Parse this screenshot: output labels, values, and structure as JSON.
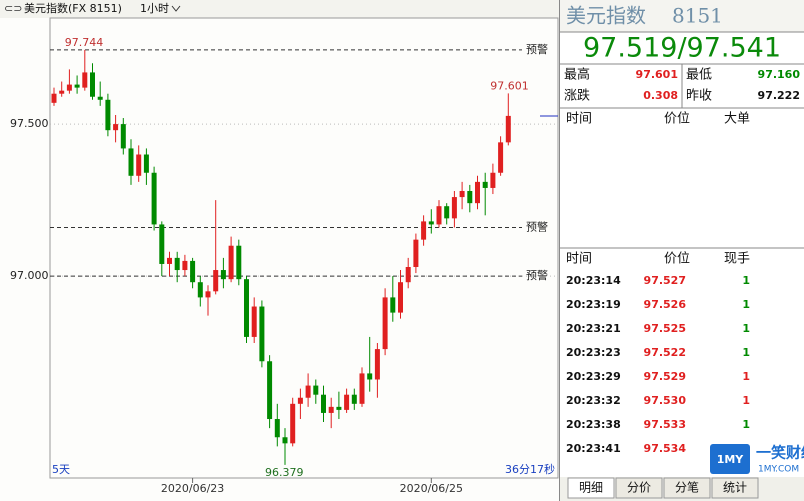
{
  "toolbar": {
    "symbol": "美元指数(FX 8151)",
    "period": "1小时"
  },
  "chart_data": {
    "type": "candlestick",
    "categories": [
      null,
      null,
      null,
      null,
      null,
      null,
      null,
      null,
      null,
      null,
      null,
      null,
      null,
      null,
      null,
      null,
      null,
      null,
      "2020/06/23",
      null,
      null,
      null,
      null,
      null,
      null,
      null,
      null,
      null,
      null,
      null,
      null,
      null,
      null,
      null,
      null,
      null,
      null,
      null,
      null,
      null,
      null,
      null,
      null,
      null,
      null,
      null,
      null,
      null,
      null,
      "2020/06/25",
      null,
      null,
      null,
      null,
      null,
      null,
      null,
      null,
      null,
      null
    ],
    "open": [
      97.57,
      97.6,
      97.61,
      97.63,
      97.62,
      97.67,
      97.59,
      97.58,
      97.48,
      97.5,
      97.42,
      97.33,
      97.4,
      97.34,
      97.17,
      97.04,
      97.06,
      97.02,
      97.05,
      96.98,
      96.93,
      96.95,
      97.02,
      96.99,
      97.1,
      96.99,
      96.8,
      96.9,
      96.72,
      96.53,
      96.47,
      96.45,
      96.58,
      96.6,
      96.64,
      96.61,
      96.55,
      96.57,
      96.56,
      96.61,
      96.58,
      96.68,
      96.66,
      96.76,
      96.93,
      96.88,
      96.98,
      97.03,
      97.12,
      97.18,
      97.17,
      97.23,
      97.19,
      97.26,
      97.28,
      97.24,
      97.31,
      97.29,
      97.34,
      97.44
    ],
    "high": [
      97.62,
      97.64,
      97.68,
      97.66,
      97.744,
      97.7,
      97.64,
      97.6,
      97.53,
      97.52,
      97.45,
      97.43,
      97.42,
      97.36,
      97.18,
      97.08,
      97.08,
      97.07,
      97.06,
      97.0,
      96.97,
      97.25,
      97.06,
      97.13,
      97.12,
      97.0,
      96.93,
      96.92,
      96.74,
      96.58,
      96.5,
      96.6,
      96.63,
      96.68,
      96.66,
      96.64,
      96.6,
      96.62,
      96.63,
      96.63,
      96.7,
      96.8,
      96.78,
      96.96,
      97.0,
      97.02,
      97.06,
      97.14,
      97.2,
      97.22,
      97.25,
      97.24,
      97.28,
      97.31,
      97.3,
      97.33,
      97.34,
      97.37,
      97.46,
      97.601
    ],
    "low": [
      97.56,
      97.59,
      97.6,
      97.6,
      97.61,
      97.58,
      97.56,
      97.46,
      97.44,
      97.4,
      97.3,
      97.31,
      97.3,
      97.15,
      97.0,
      97.0,
      96.98,
      97.0,
      96.96,
      96.9,
      96.87,
      96.94,
      96.96,
      96.98,
      96.97,
      96.78,
      96.78,
      96.7,
      96.5,
      96.44,
      96.379,
      96.44,
      96.53,
      96.57,
      96.58,
      96.52,
      96.5,
      96.53,
      96.55,
      96.56,
      96.57,
      96.62,
      96.6,
      96.74,
      96.85,
      96.86,
      96.96,
      97.01,
      97.1,
      97.14,
      97.16,
      97.17,
      97.16,
      97.22,
      97.21,
      97.22,
      97.2,
      97.27,
      97.33,
      97.43
    ],
    "close": [
      97.6,
      97.61,
      97.63,
      97.62,
      97.67,
      97.59,
      97.58,
      97.48,
      97.5,
      97.42,
      97.33,
      97.4,
      97.34,
      97.17,
      97.04,
      97.06,
      97.02,
      97.05,
      96.98,
      96.93,
      96.95,
      97.02,
      96.99,
      97.1,
      96.99,
      96.8,
      96.9,
      96.72,
      96.53,
      96.47,
      96.45,
      96.58,
      96.6,
      96.64,
      96.61,
      96.55,
      96.57,
      96.56,
      96.61,
      96.58,
      96.68,
      96.66,
      96.76,
      96.93,
      96.88,
      96.98,
      97.03,
      97.12,
      97.18,
      97.17,
      97.23,
      97.19,
      97.26,
      97.28,
      97.24,
      97.31,
      97.29,
      97.34,
      97.44,
      97.527
    ],
    "up_color": "#e02020",
    "down_color": "#008a00",
    "ylim": [
      96.336,
      97.849
    ],
    "yticks": [
      {
        "value": 97.5,
        "label": "97.500"
      },
      {
        "value": 97,
        "label": "97.000"
      }
    ],
    "grid": true,
    "alerts": [
      {
        "value": 97.744,
        "label": "预警"
      },
      {
        "value": 97.16,
        "label": "预警"
      },
      {
        "value": 97.0,
        "label": "预警"
      }
    ],
    "range_label": "5天",
    "countdown": "36分17秒"
  },
  "quote_panel": {
    "name": "美元指数",
    "code": "8151",
    "price": "97.519/97.541",
    "stats": [
      [
        "最高",
        "97.601"
      ],
      [
        "最低",
        "97.160"
      ],
      [
        "涨跌",
        "0.308"
      ],
      [
        "昨收",
        "97.222"
      ]
    ],
    "big_orders_header": [
      "时间",
      "价位",
      "大单"
    ],
    "ticks_header": [
      "时间",
      "价位",
      "现手"
    ],
    "ticks": [
      {
        "time": "20:23:14",
        "price": "97.527",
        "volume": "1",
        "volume_color": "#008a00"
      },
      {
        "time": "20:23:19",
        "price": "97.526",
        "volume": "1",
        "volume_color": "#008a00"
      },
      {
        "time": "20:23:21",
        "price": "97.525",
        "volume": "1",
        "volume_color": "#008a00"
      },
      {
        "time": "20:23:23",
        "price": "97.522",
        "volume": "1",
        "volume_color": "#008a00"
      },
      {
        "time": "20:23:29",
        "price": "97.529",
        "volume": "1",
        "volume_color": "#e02020"
      },
      {
        "time": "20:23:32",
        "price": "97.530",
        "volume": "1",
        "volume_color": "#e02020"
      },
      {
        "time": "20:23:38",
        "price": "97.533",
        "volume": "1",
        "volume_color": "#008a00"
      },
      {
        "time": "20:23:41",
        "price": "97.534",
        "volume": "1",
        "volume_color": "#008a00"
      }
    ],
    "tabs": [
      "明细",
      "分价",
      "分笔",
      "统计"
    ]
  },
  "watermark": {
    "logo": "1MY",
    "name": "一笑财经",
    "site": "1MY.COM"
  }
}
